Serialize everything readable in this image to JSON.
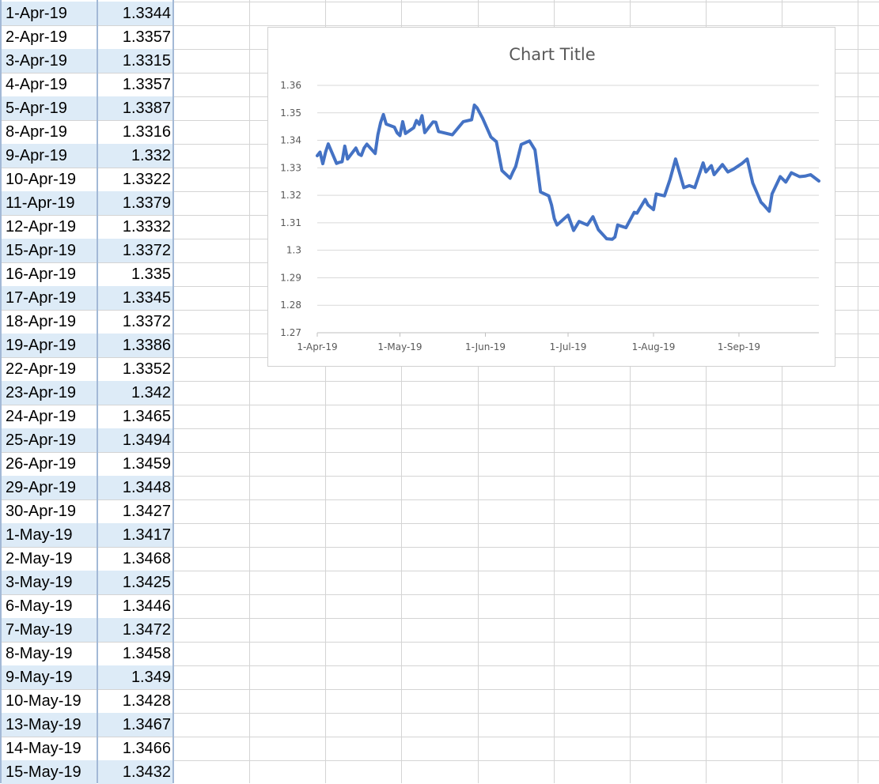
{
  "sheet": {
    "rows": [
      {
        "date": "1-Apr-19",
        "value": "1.3344"
      },
      {
        "date": "2-Apr-19",
        "value": "1.3357"
      },
      {
        "date": "3-Apr-19",
        "value": "1.3315"
      },
      {
        "date": "4-Apr-19",
        "value": "1.3357"
      },
      {
        "date": "5-Apr-19",
        "value": "1.3387"
      },
      {
        "date": "8-Apr-19",
        "value": "1.3316"
      },
      {
        "date": "9-Apr-19",
        "value": "1.332"
      },
      {
        "date": "10-Apr-19",
        "value": "1.3322"
      },
      {
        "date": "11-Apr-19",
        "value": "1.3379"
      },
      {
        "date": "12-Apr-19",
        "value": "1.3332"
      },
      {
        "date": "15-Apr-19",
        "value": "1.3372"
      },
      {
        "date": "16-Apr-19",
        "value": "1.335"
      },
      {
        "date": "17-Apr-19",
        "value": "1.3345"
      },
      {
        "date": "18-Apr-19",
        "value": "1.3372"
      },
      {
        "date": "19-Apr-19",
        "value": "1.3386"
      },
      {
        "date": "22-Apr-19",
        "value": "1.3352"
      },
      {
        "date": "23-Apr-19",
        "value": "1.342"
      },
      {
        "date": "24-Apr-19",
        "value": "1.3465"
      },
      {
        "date": "25-Apr-19",
        "value": "1.3494"
      },
      {
        "date": "26-Apr-19",
        "value": "1.3459"
      },
      {
        "date": "29-Apr-19",
        "value": "1.3448"
      },
      {
        "date": "30-Apr-19",
        "value": "1.3427"
      },
      {
        "date": "1-May-19",
        "value": "1.3417"
      },
      {
        "date": "2-May-19",
        "value": "1.3468"
      },
      {
        "date": "3-May-19",
        "value": "1.3425"
      },
      {
        "date": "6-May-19",
        "value": "1.3446"
      },
      {
        "date": "7-May-19",
        "value": "1.3472"
      },
      {
        "date": "8-May-19",
        "value": "1.3458"
      },
      {
        "date": "9-May-19",
        "value": "1.349"
      },
      {
        "date": "10-May-19",
        "value": "1.3428"
      },
      {
        "date": "13-May-19",
        "value": "1.3467"
      },
      {
        "date": "14-May-19",
        "value": "1.3466"
      },
      {
        "date": "15-May-19",
        "value": "1.3432"
      }
    ]
  },
  "colors": {
    "grid": "#d4d4d4",
    "shade": "#ddebf7",
    "selection_border": "#a3b9d6",
    "series": "#4472c4",
    "axis_text": "#595959",
    "gridline": "#d9d9d9"
  },
  "chart_data": {
    "type": "line",
    "title": "Chart Title",
    "xlabel": "",
    "ylabel": "",
    "ylim": [
      1.27,
      1.36
    ],
    "yticks": [
      "1.27",
      "1.28",
      "1.29",
      "1.3",
      "1.31",
      "1.32",
      "1.33",
      "1.34",
      "1.35",
      "1.36"
    ],
    "xlim": [
      "2019-04-01",
      "2019-09-30"
    ],
    "xticks": [
      {
        "date": "2019-04-01",
        "label": "1-Apr-19"
      },
      {
        "date": "2019-05-01",
        "label": "1-May-19"
      },
      {
        "date": "2019-06-01",
        "label": "1-Jun-19"
      },
      {
        "date": "2019-07-01",
        "label": "1-Jul-19"
      },
      {
        "date": "2019-08-01",
        "label": "1-Aug-19"
      },
      {
        "date": "2019-09-01",
        "label": "1-Sep-19"
      }
    ],
    "grid": true,
    "legend": "none",
    "series": [
      {
        "x": [
          "2019-04-01",
          "2019-04-02",
          "2019-04-03",
          "2019-04-04",
          "2019-04-05",
          "2019-04-08",
          "2019-04-09",
          "2019-04-10",
          "2019-04-11",
          "2019-04-12",
          "2019-04-15",
          "2019-04-16",
          "2019-04-17",
          "2019-04-18",
          "2019-04-19",
          "2019-04-22",
          "2019-04-23",
          "2019-04-24",
          "2019-04-25",
          "2019-04-26",
          "2019-04-29",
          "2019-04-30",
          "2019-05-01",
          "2019-05-02",
          "2019-05-03",
          "2019-05-06",
          "2019-05-07",
          "2019-05-08",
          "2019-05-09",
          "2019-05-10",
          "2019-05-13",
          "2019-05-14",
          "2019-05-15",
          "2019-05-20",
          "2019-05-24",
          "2019-05-27",
          "2019-05-28",
          "2019-05-29",
          "2019-05-31",
          "2019-06-03",
          "2019-06-05",
          "2019-06-07",
          "2019-06-10",
          "2019-06-11",
          "2019-06-12",
          "2019-06-14",
          "2019-06-17",
          "2019-06-19",
          "2019-06-21",
          "2019-06-24",
          "2019-06-25",
          "2019-06-26",
          "2019-06-27",
          "2019-07-01",
          "2019-07-03",
          "2019-07-05",
          "2019-07-08",
          "2019-07-10",
          "2019-07-12",
          "2019-07-15",
          "2019-07-17",
          "2019-07-18",
          "2019-07-19",
          "2019-07-22",
          "2019-07-25",
          "2019-07-26",
          "2019-07-29",
          "2019-07-30",
          "2019-08-01",
          "2019-08-02",
          "2019-08-05",
          "2019-08-07",
          "2019-08-09",
          "2019-08-12",
          "2019-08-14",
          "2019-08-16",
          "2019-08-19",
          "2019-08-20",
          "2019-08-22",
          "2019-08-23",
          "2019-08-26",
          "2019-08-28",
          "2019-08-30",
          "2019-09-02",
          "2019-09-04",
          "2019-09-06",
          "2019-09-09",
          "2019-09-10",
          "2019-09-12",
          "2019-09-13",
          "2019-09-16",
          "2019-09-18",
          "2019-09-20",
          "2019-09-23",
          "2019-09-25",
          "2019-09-27",
          "2019-09-30"
        ],
        "y": [
          1.3344,
          1.3357,
          1.3315,
          1.3357,
          1.3387,
          1.3316,
          1.332,
          1.3322,
          1.3379,
          1.3332,
          1.3372,
          1.335,
          1.3345,
          1.3372,
          1.3386,
          1.3352,
          1.342,
          1.3465,
          1.3494,
          1.3459,
          1.3448,
          1.3427,
          1.3417,
          1.3468,
          1.3425,
          1.3446,
          1.3472,
          1.3458,
          1.349,
          1.3428,
          1.3467,
          1.3466,
          1.3432,
          1.342,
          1.3468,
          1.3475,
          1.3528,
          1.3518,
          1.348,
          1.3412,
          1.3395,
          1.329,
          1.3262,
          1.3285,
          1.3305,
          1.3385,
          1.3398,
          1.3365,
          1.3212,
          1.3198,
          1.3165,
          1.3115,
          1.3092,
          1.3128,
          1.3072,
          1.3105,
          1.3092,
          1.3122,
          1.3075,
          1.3042,
          1.304,
          1.3048,
          1.3092,
          1.3082,
          1.3138,
          1.3135,
          1.3185,
          1.3165,
          1.3148,
          1.3205,
          1.3198,
          1.3258,
          1.3332,
          1.3228,
          1.3235,
          1.3228,
          1.3318,
          1.3285,
          1.3308,
          1.3275,
          1.3312,
          1.3285,
          1.3295,
          1.3315,
          1.3332,
          1.3245,
          1.3175,
          1.3165,
          1.3142,
          1.3205,
          1.3268,
          1.3248,
          1.3282,
          1.3268,
          1.327,
          1.3275,
          1.3252
        ]
      }
    ]
  }
}
